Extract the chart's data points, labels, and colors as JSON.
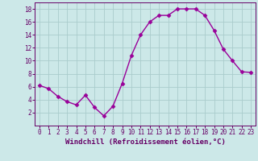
{
  "x": [
    0,
    1,
    2,
    3,
    4,
    5,
    6,
    7,
    8,
    9,
    10,
    11,
    12,
    13,
    14,
    15,
    16,
    17,
    18,
    19,
    20,
    21,
    22,
    23
  ],
  "y": [
    6.2,
    5.7,
    4.5,
    3.7,
    3.2,
    4.7,
    2.8,
    1.5,
    3.0,
    6.5,
    10.8,
    14.0,
    16.0,
    17.0,
    17.0,
    18.0,
    18.0,
    18.0,
    17.0,
    14.7,
    11.8,
    10.0,
    8.3,
    8.2
  ],
  "line_color": "#990099",
  "marker": "D",
  "marker_size": 2.5,
  "bg_color": "#cce8e8",
  "grid_color": "#aacccc",
  "xlabel": "Windchill (Refroidissement éolien,°C)",
  "xlim": [
    -0.5,
    23.5
  ],
  "ylim": [
    0,
    19
  ],
  "yticks": [
    2,
    4,
    6,
    8,
    10,
    12,
    14,
    16,
    18
  ],
  "xticks": [
    0,
    1,
    2,
    3,
    4,
    5,
    6,
    7,
    8,
    9,
    10,
    11,
    12,
    13,
    14,
    15,
    16,
    17,
    18,
    19,
    20,
    21,
    22,
    23
  ],
  "tick_color": "#660066",
  "tick_fontsize": 5.5,
  "xlabel_fontsize": 6.5,
  "label_color": "#660066",
  "spine_color": "#660066",
  "line_width": 1.0
}
